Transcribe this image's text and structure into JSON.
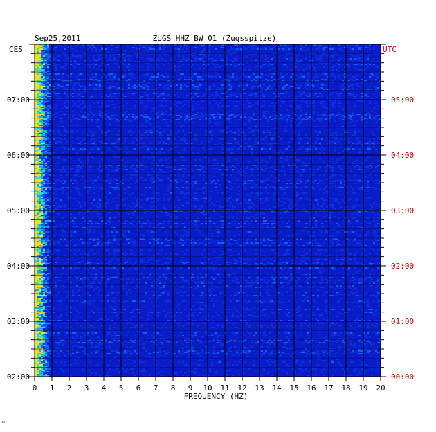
{
  "header": {
    "date": "Sep25,2011",
    "station": "ZUGS HHZ BW 01 (Zugsspitze)",
    "left_tz": "CES",
    "right_tz": "UTC"
  },
  "chart_data": {
    "type": "heatmap",
    "title": "ZUGS HHZ BW 01 (Zugsspitze)",
    "xlabel": "FREQUENCY (HZ)",
    "ylabel": "",
    "x_ticks": [
      "0",
      "1",
      "2",
      "3",
      "4",
      "5",
      "6",
      "7",
      "8",
      "9",
      "10",
      "11",
      "12",
      "13",
      "14",
      "15",
      "16",
      "17",
      "18",
      "19",
      "20"
    ],
    "xlim": [
      0,
      20
    ],
    "y_ticks_left": [
      "07:00",
      "06:00",
      "05:00",
      "04:00",
      "03:00",
      "02:00"
    ],
    "y_ticks_right": [
      "05:00",
      "04:00",
      "03:00",
      "02:00",
      "01:00",
      "00:00"
    ],
    "y_tick_hours_from_bottom": [
      5,
      4,
      3,
      2,
      1,
      0
    ],
    "y_range_hours": [
      0,
      6
    ],
    "grid": true,
    "colors": {
      "background": "#0a1cc8",
      "grid": "#000000",
      "left_labels": "#000000",
      "right_labels": "#d00000"
    }
  },
  "footnote": "*"
}
